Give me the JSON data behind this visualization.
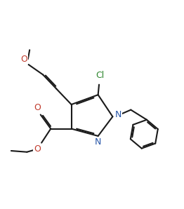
{
  "line_color": "#1a1a1a",
  "bg_color": "#ffffff",
  "lw": 1.5,
  "dbo": 0.055,
  "fs": 9.0,
  "color_N": "#2655a8",
  "color_O": "#c0392b",
  "color_Cl": "#2d862d",
  "xlim": [
    1.0,
    8.5
  ],
  "ylim": [
    1.5,
    9.5
  ]
}
